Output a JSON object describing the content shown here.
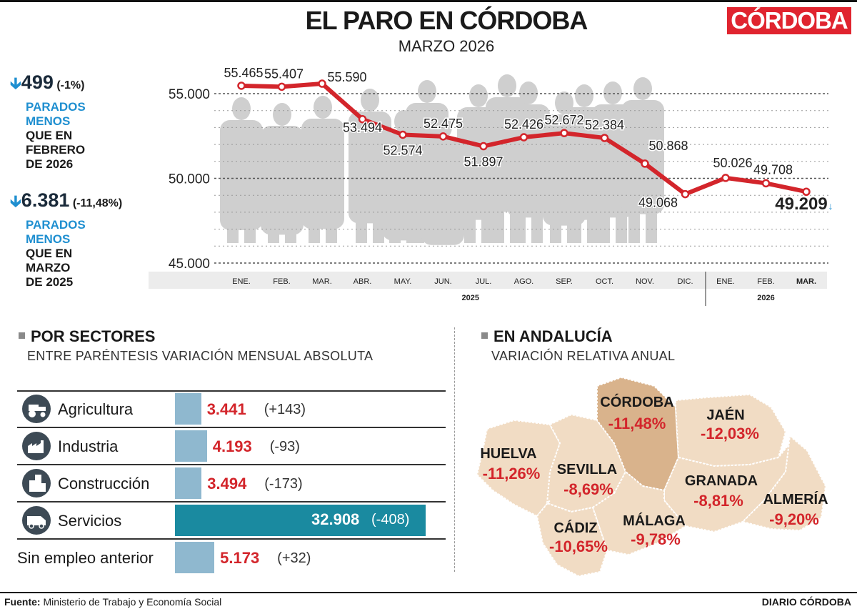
{
  "header": {
    "title": "EL PARO EN CÓRDOBA",
    "subtitle": "MARZO 2026",
    "logo_text": "CÓRDOBA"
  },
  "stats": [
    {
      "arrow": "down-arrow-icon",
      "value": "499",
      "pct": "(-1%)",
      "line1": "PARADOS",
      "line2": "MENOS",
      "line3": "QUE EN",
      "line4": "FEBRERO",
      "line5": "DE 2026"
    },
    {
      "arrow": "down-arrow-icon",
      "value": "6.381",
      "pct": "(-11,48%)",
      "line1": "PARADOS",
      "line2": "MENOS",
      "line3": "QUE EN",
      "line4": "MARZO",
      "line5": "DE 2025"
    }
  ],
  "chart_data": {
    "type": "line",
    "x": [
      "ENE.",
      "FEB.",
      "MAR.",
      "ABR.",
      "MAY.",
      "JUN.",
      "JUL.",
      "AGO.",
      "SEP.",
      "OCT.",
      "NOV.",
      "DIC.",
      "ENE.",
      "FEB.",
      "MAR."
    ],
    "years": [
      {
        "label": "2025",
        "from": 0,
        "to": 11
      },
      {
        "label": "2026",
        "from": 12,
        "to": 14
      }
    ],
    "values": [
      55465,
      55407,
      55590,
      53494,
      52574,
      52475,
      51897,
      52426,
      52672,
      52384,
      50868,
      49068,
      50026,
      49708,
      49209
    ],
    "value_labels": [
      "55.465",
      "55.407",
      "55.590",
      "53.494",
      "52.574",
      "52.475",
      "51.897",
      "52.426",
      "52.672",
      "52.384",
      "50.868",
      "49.068",
      "50.026",
      "49.708",
      "49.209"
    ],
    "yticks": [
      45000,
      50000,
      55000
    ],
    "ytick_labels": [
      "45.000",
      "50.000",
      "55.000"
    ],
    "ylim": [
      45000,
      56500
    ],
    "line_color": "#d3252b",
    "grid": true
  },
  "sectors": {
    "heading": "POR SECTORES",
    "subheading": "ENTRE PARÉNTESIS VARIACIÓN MENSUAL ABSOLUTA",
    "bar_color": "#8fb8cf",
    "highlight_color": "#1a8aa0",
    "max_value": 32908,
    "items": [
      {
        "name": "Agricultura",
        "icon": "tractor-icon",
        "value": 3441,
        "value_label": "3.441",
        "change": "(+143)"
      },
      {
        "name": "Industria",
        "icon": "factory-icon",
        "value": 4193,
        "value_label": "4.193",
        "change": "(-93)"
      },
      {
        "name": "Construcción",
        "icon": "buildings-icon",
        "value": 3494,
        "value_label": "3.494",
        "change": "(-173)"
      },
      {
        "name": "Servicios",
        "icon": "van-icon",
        "value": 32908,
        "value_label": "32.908",
        "change": "(-408)"
      },
      {
        "name": "Sin empleo anterior",
        "icon": "",
        "value": 5173,
        "value_label": "5.173",
        "change": "(+32)"
      }
    ]
  },
  "andalucia": {
    "heading": "EN ANDALUCÍA",
    "subheading": "VARIACIÓN RELATIVA ANUAL",
    "map_fill": "#f1dcc4",
    "highlight_fill": "#d9b38c",
    "provinces": [
      {
        "name": "CÓRDOBA",
        "value": "-11,48%"
      },
      {
        "name": "JAÉN",
        "value": "-12,03%"
      },
      {
        "name": "HUELVA",
        "value": "-11,26%"
      },
      {
        "name": "SEVILLA",
        "value": "-8,69%"
      },
      {
        "name": "GRANADA",
        "value": "-8,81%"
      },
      {
        "name": "ALMERÍA",
        "value": "-9,20%"
      },
      {
        "name": "CÁDIZ",
        "value": "-10,65%"
      },
      {
        "name": "MÁLAGA",
        "value": "-9,78%"
      }
    ]
  },
  "footer": {
    "source_label": "Fuente:",
    "source_text": "Ministerio de Trabajo y Economía Social",
    "publisher": "DIARIO CÓRDOBA"
  }
}
